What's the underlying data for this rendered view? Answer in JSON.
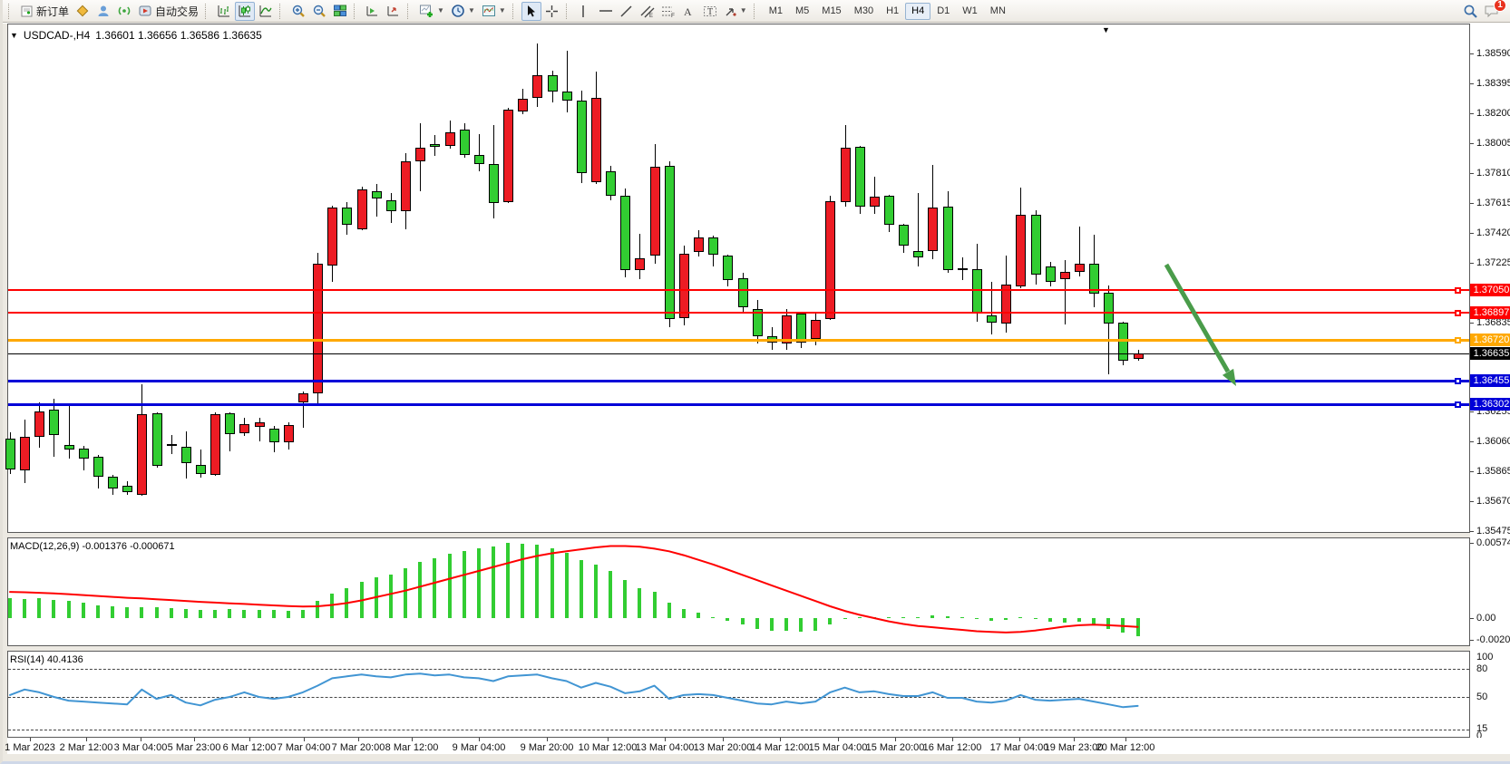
{
  "toolbar": {
    "new_order_label": "新订单",
    "auto_trading_label": "自动交易",
    "timeframes": [
      "M1",
      "M5",
      "M15",
      "M30",
      "H1",
      "H4",
      "D1",
      "W1",
      "MN"
    ],
    "active_timeframe": "H4",
    "notification_badge": "1",
    "icons": [
      "new-order-icon",
      "profile-icon",
      "community-icon",
      "signal-icon",
      "auto-trading-icon",
      "bar-chart-icon",
      "candlestick-chart-icon",
      "line-chart-icon",
      "zoom-in-icon",
      "zoom-out-icon",
      "tile-windows-icon",
      "arrange-charts-icon",
      "arrange-cascade-icon",
      "new-chart-icon",
      "periods-clock-icon",
      "indicators-icon",
      "cursor-icon",
      "crosshair-icon",
      "vertical-line-icon",
      "horizontal-line-icon",
      "trendline-icon",
      "channel-icon",
      "fibonacci-icon",
      "text-icon",
      "text-label-icon",
      "arrow-objects-icon",
      "search-icon",
      "chat-icon"
    ]
  },
  "chart": {
    "title_symbol": "USDCAD-,H4",
    "title_ohlc": "1.36601 1.36656 1.36586 1.36635",
    "shift_marker": "▼",
    "dropdown_marker": "▼"
  },
  "chart_data": {
    "type": "candlestick",
    "symbol": "USDCAD-",
    "timeframe": "H4",
    "current_bar": {
      "open": 1.36601,
      "high": 1.36656,
      "low": 1.36586,
      "close": 1.36635
    },
    "bull_color": "#ed1c24",
    "bear_color": "#32cd32",
    "price_axis": {
      "labels": [
        "1.38590",
        "1.38395",
        "1.38200",
        "1.38005",
        "1.37810",
        "1.37615",
        "1.37420",
        "1.37225",
        "1.36835",
        "1.36255",
        "1.36060",
        "1.35865",
        "1.35670",
        "1.35475"
      ],
      "min": 1.35475,
      "max": 1.38655
    },
    "levels": [
      {
        "label": "1.37050",
        "price": 1.3705,
        "color": "#ff0000",
        "width": 2
      },
      {
        "label": "1.36897",
        "price": 1.36897,
        "color": "#ff0000",
        "width": 2
      },
      {
        "label": "1.36720",
        "price": 1.3672,
        "color": "#ffa800",
        "width": 3
      },
      {
        "label": "1.36635",
        "price": 1.36635,
        "color": "#000000",
        "width": 1,
        "current": true
      },
      {
        "label": "1.36455",
        "price": 1.36455,
        "color": "#0000d8",
        "width": 3
      },
      {
        "label": "1.36302",
        "price": 1.36302,
        "color": "#0000d8",
        "width": 3
      }
    ],
    "candles": [
      [
        1.36076,
        1.3612,
        1.35848,
        1.35878
      ],
      [
        1.35872,
        1.36202,
        1.3579,
        1.3609
      ],
      [
        1.3609,
        1.36313,
        1.36019,
        1.36256
      ],
      [
        1.36265,
        1.36336,
        1.3596,
        1.361
      ],
      [
        1.36037,
        1.36302,
        1.35948,
        1.36007
      ],
      [
        1.36013,
        1.3603,
        1.35871,
        1.35948
      ],
      [
        1.3596,
        1.35972,
        1.35753,
        1.3583
      ],
      [
        1.3583,
        1.35842,
        1.35711,
        1.35753
      ],
      [
        1.35771,
        1.358,
        1.35711,
        1.35729
      ],
      [
        1.35711,
        1.36432,
        1.35705,
        1.36237
      ],
      [
        1.36243,
        1.3625,
        1.3589,
        1.359
      ],
      [
        1.36043,
        1.36101,
        1.35978,
        1.36037
      ],
      [
        1.36025,
        1.36125,
        1.35818,
        1.35919
      ],
      [
        1.35907,
        1.36007,
        1.35824,
        1.35848
      ],
      [
        1.35842,
        1.3625,
        1.35836,
        1.36237
      ],
      [
        1.36243,
        1.3625,
        1.35995,
        1.36107
      ],
      [
        1.36113,
        1.36213,
        1.36096,
        1.36172
      ],
      [
        1.36155,
        1.36213,
        1.3606,
        1.36184
      ],
      [
        1.36143,
        1.3616,
        1.3599,
        1.36054
      ],
      [
        1.36054,
        1.36184,
        1.36007,
        1.36166
      ],
      [
        1.36315,
        1.36386,
        1.3615,
        1.36374
      ],
      [
        1.36374,
        1.3729,
        1.36302,
        1.37218
      ],
      [
        1.37206,
        1.37597,
        1.371,
        1.37585
      ],
      [
        1.37585,
        1.3762,
        1.37408,
        1.37473
      ],
      [
        1.37443,
        1.37721,
        1.37437,
        1.37703
      ],
      [
        1.37691,
        1.3774,
        1.37526,
        1.37644
      ],
      [
        1.37632,
        1.3768,
        1.37485,
        1.37561
      ],
      [
        1.37561,
        1.3794,
        1.37443,
        1.37886
      ],
      [
        1.37886,
        1.38135,
        1.37691,
        1.37975
      ],
      [
        1.38,
        1.3806,
        1.3792,
        1.3798
      ],
      [
        1.37987,
        1.38153,
        1.37969,
        1.38075
      ],
      [
        1.38093,
        1.38135,
        1.3791,
        1.37928
      ],
      [
        1.37928,
        1.38064,
        1.37822,
        1.37869
      ],
      [
        1.37869,
        1.38123,
        1.37514,
        1.37615
      ],
      [
        1.37621,
        1.38235,
        1.37615,
        1.38224
      ],
      [
        1.38212,
        1.3836,
        1.38194,
        1.38295
      ],
      [
        1.38301,
        1.38655,
        1.38241,
        1.38449
      ],
      [
        1.38449,
        1.3848,
        1.38271,
        1.38342
      ],
      [
        1.38342,
        1.38608,
        1.38206,
        1.38283
      ],
      [
        1.38283,
        1.3835,
        1.37745,
        1.3781
      ],
      [
        1.37751,
        1.38472,
        1.3774,
        1.383
      ],
      [
        1.37822,
        1.37857,
        1.37633,
        1.37662
      ],
      [
        1.37662,
        1.3771,
        1.3713,
        1.37178
      ],
      [
        1.37178,
        1.37414,
        1.37118,
        1.37254
      ],
      [
        1.37272,
        1.38,
        1.37219,
        1.37851
      ],
      [
        1.37857,
        1.37887,
        1.36805,
        1.36858
      ],
      [
        1.36864,
        1.37337,
        1.36817,
        1.37284
      ],
      [
        1.37295,
        1.37438,
        1.37266,
        1.3739
      ],
      [
        1.3739,
        1.374,
        1.37201,
        1.37278
      ],
      [
        1.37272,
        1.3728,
        1.37071,
        1.37112
      ],
      [
        1.37124,
        1.3716,
        1.36893,
        1.36935
      ],
      [
        1.36923,
        1.36982,
        1.36699,
        1.36746
      ],
      [
        1.36746,
        1.36805,
        1.36657,
        1.36705
      ],
      [
        1.36699,
        1.36923,
        1.36657,
        1.36882
      ],
      [
        1.36893,
        1.369,
        1.36669,
        1.36705
      ],
      [
        1.36729,
        1.36893,
        1.36687,
        1.36852
      ],
      [
        1.36858,
        1.37662,
        1.36852,
        1.37627
      ],
      [
        1.37621,
        1.38123,
        1.37591,
        1.37975
      ],
      [
        1.37981,
        1.3799,
        1.37544,
        1.37591
      ],
      [
        1.37591,
        1.37786,
        1.37544,
        1.37656
      ],
      [
        1.37662,
        1.3767,
        1.37426,
        1.37473
      ],
      [
        1.37473,
        1.3748,
        1.3729,
        1.37337
      ],
      [
        1.37302,
        1.3768,
        1.37201,
        1.3726
      ],
      [
        1.37302,
        1.37863,
        1.37248,
        1.37585
      ],
      [
        1.37591,
        1.37692,
        1.3716,
        1.37178
      ],
      [
        1.3719,
        1.3726,
        1.3711,
        1.37178
      ],
      [
        1.37184,
        1.37349,
        1.3684,
        1.369
      ],
      [
        1.36882,
        1.371,
        1.36757,
        1.36835
      ],
      [
        1.36829,
        1.37272,
        1.3677,
        1.37083
      ],
      [
        1.37071,
        1.37715,
        1.3706,
        1.37538
      ],
      [
        1.37538,
        1.37567,
        1.37083,
        1.37148
      ],
      [
        1.37201,
        1.3723,
        1.37071,
        1.371
      ],
      [
        1.37118,
        1.37242,
        1.36823,
        1.37165
      ],
      [
        1.37166,
        1.37462,
        1.37136,
        1.37219
      ],
      [
        1.37219,
        1.37408,
        1.36935,
        1.37024
      ],
      [
        1.3703,
        1.37077,
        1.36498,
        1.36829
      ],
      [
        1.36835,
        1.3684,
        1.36557,
        1.36587
      ],
      [
        1.36601,
        1.36656,
        1.36586,
        1.36635
      ]
    ],
    "macd": {
      "label": "MACD(12,26,9) -0.001376 -0.000671",
      "main_value": -0.001376,
      "signal_value": -0.000671,
      "axis_labels": [
        "0.005741",
        "0.00",
        "-0.002027"
      ],
      "histogram_color": "#32cd32",
      "signal_color": "#ff0000",
      "histogram": [
        0.0015,
        0.00145,
        0.0015,
        0.0014,
        0.0013,
        0.00115,
        0.001,
        0.0009,
        0.0008,
        0.00085,
        0.0008,
        0.00075,
        0.0007,
        0.0006,
        0.00065,
        0.0007,
        0.00065,
        0.0006,
        0.00062,
        0.00055,
        0.0006,
        0.0013,
        0.0019,
        0.0023,
        0.0028,
        0.0031,
        0.0033,
        0.0038,
        0.0043,
        0.0046,
        0.0049,
        0.0051,
        0.0053,
        0.00545,
        0.005741,
        0.0057,
        0.0056,
        0.00535,
        0.005,
        0.0044,
        0.0041,
        0.0036,
        0.0029,
        0.0023,
        0.002,
        0.0012,
        0.0007,
        0.0004,
        0.0001,
        -0.0002,
        -0.0005,
        -0.0008,
        -0.001,
        -0.001,
        -0.00105,
        -0.00095,
        -0.0005,
        -0.0001,
        5e-05,
        0.0001,
        5e-05,
        0,
        5e-05,
        0.0002,
        0.00015,
        0.0001,
        -0.0001,
        -0.0002,
        -0.00015,
        0.0001,
        -0.0001,
        -0.0003,
        -0.00035,
        -0.0003,
        -0.0005,
        -0.0008,
        -0.0011,
        -0.001376
      ],
      "signal": [
        0.002,
        0.00197,
        0.00193,
        0.00188,
        0.00183,
        0.00176,
        0.00169,
        0.00162,
        0.00155,
        0.0015,
        0.00144,
        0.00138,
        0.00131,
        0.00124,
        0.00118,
        0.00113,
        0.00108,
        0.00102,
        0.00097,
        0.00092,
        0.00088,
        0.0009,
        0.001,
        0.00115,
        0.00135,
        0.0016,
        0.00185,
        0.0021,
        0.0024,
        0.0027,
        0.003,
        0.0033,
        0.0036,
        0.0039,
        0.0042,
        0.0045,
        0.00475,
        0.00495,
        0.0051,
        0.00525,
        0.0054,
        0.0055,
        0.0055,
        0.00545,
        0.0053,
        0.0051,
        0.0048,
        0.00445,
        0.0041,
        0.0037,
        0.0033,
        0.0029,
        0.0025,
        0.0021,
        0.0017,
        0.0013,
        0.0009,
        0.00055,
        0.00025,
        0,
        -0.00025,
        -0.00045,
        -0.0006,
        -0.0007,
        -0.0008,
        -0.0009,
        -0.001,
        -0.00105,
        -0.0011,
        -0.00105,
        -0.00095,
        -0.0008,
        -0.00065,
        -0.00055,
        -0.0005,
        -0.00055,
        -0.0006,
        -0.000671
      ]
    },
    "rsi": {
      "label": "RSI(14) 40.4136",
      "value": 40.4136,
      "axis_labels": [
        "100",
        "80",
        "50",
        "15",
        "0"
      ],
      "levels": [
        80,
        50,
        15
      ],
      "line_color": "#4195d3",
      "values": [
        52,
        58,
        55,
        50,
        46,
        45,
        44,
        43,
        42,
        58,
        48,
        52,
        44,
        41,
        47,
        50,
        55,
        50,
        48,
        50,
        55,
        62,
        70,
        72,
        74,
        72,
        71,
        74,
        75,
        73,
        74,
        71,
        70,
        67,
        72,
        73,
        74,
        70,
        67,
        60,
        65,
        61,
        54,
        56,
        62,
        48,
        52,
        53,
        52,
        49,
        46,
        43,
        42,
        45,
        43,
        45,
        55,
        60,
        55,
        56,
        53,
        51,
        51,
        55,
        49,
        49,
        45,
        44,
        46,
        52,
        47,
        46,
        47,
        48,
        45,
        42,
        39,
        40.41
      ]
    },
    "time_axis": [
      "1 Mar 2023",
      "2 Mar 12:00",
      "3 Mar 04:00",
      "5 Mar 23:00",
      "6 Mar 12:00",
      "7 Mar 04:00",
      "7 Mar 20:00",
      "8 Mar 12:00",
      "9 Mar 04:00",
      "9 Mar 20:00",
      "10 Mar 12:00",
      "13 Mar 04:00",
      "13 Mar 20:00",
      "14 Mar 12:00",
      "15 Mar 04:00",
      "15 Mar 20:00",
      "16 Mar 12:00",
      "17 Mar 04:00",
      "19 Mar 23:00",
      "20 Mar 12:00"
    ],
    "annotation": {
      "type": "arrow",
      "color": "#4a9c4a",
      "direction": "down-right"
    }
  }
}
